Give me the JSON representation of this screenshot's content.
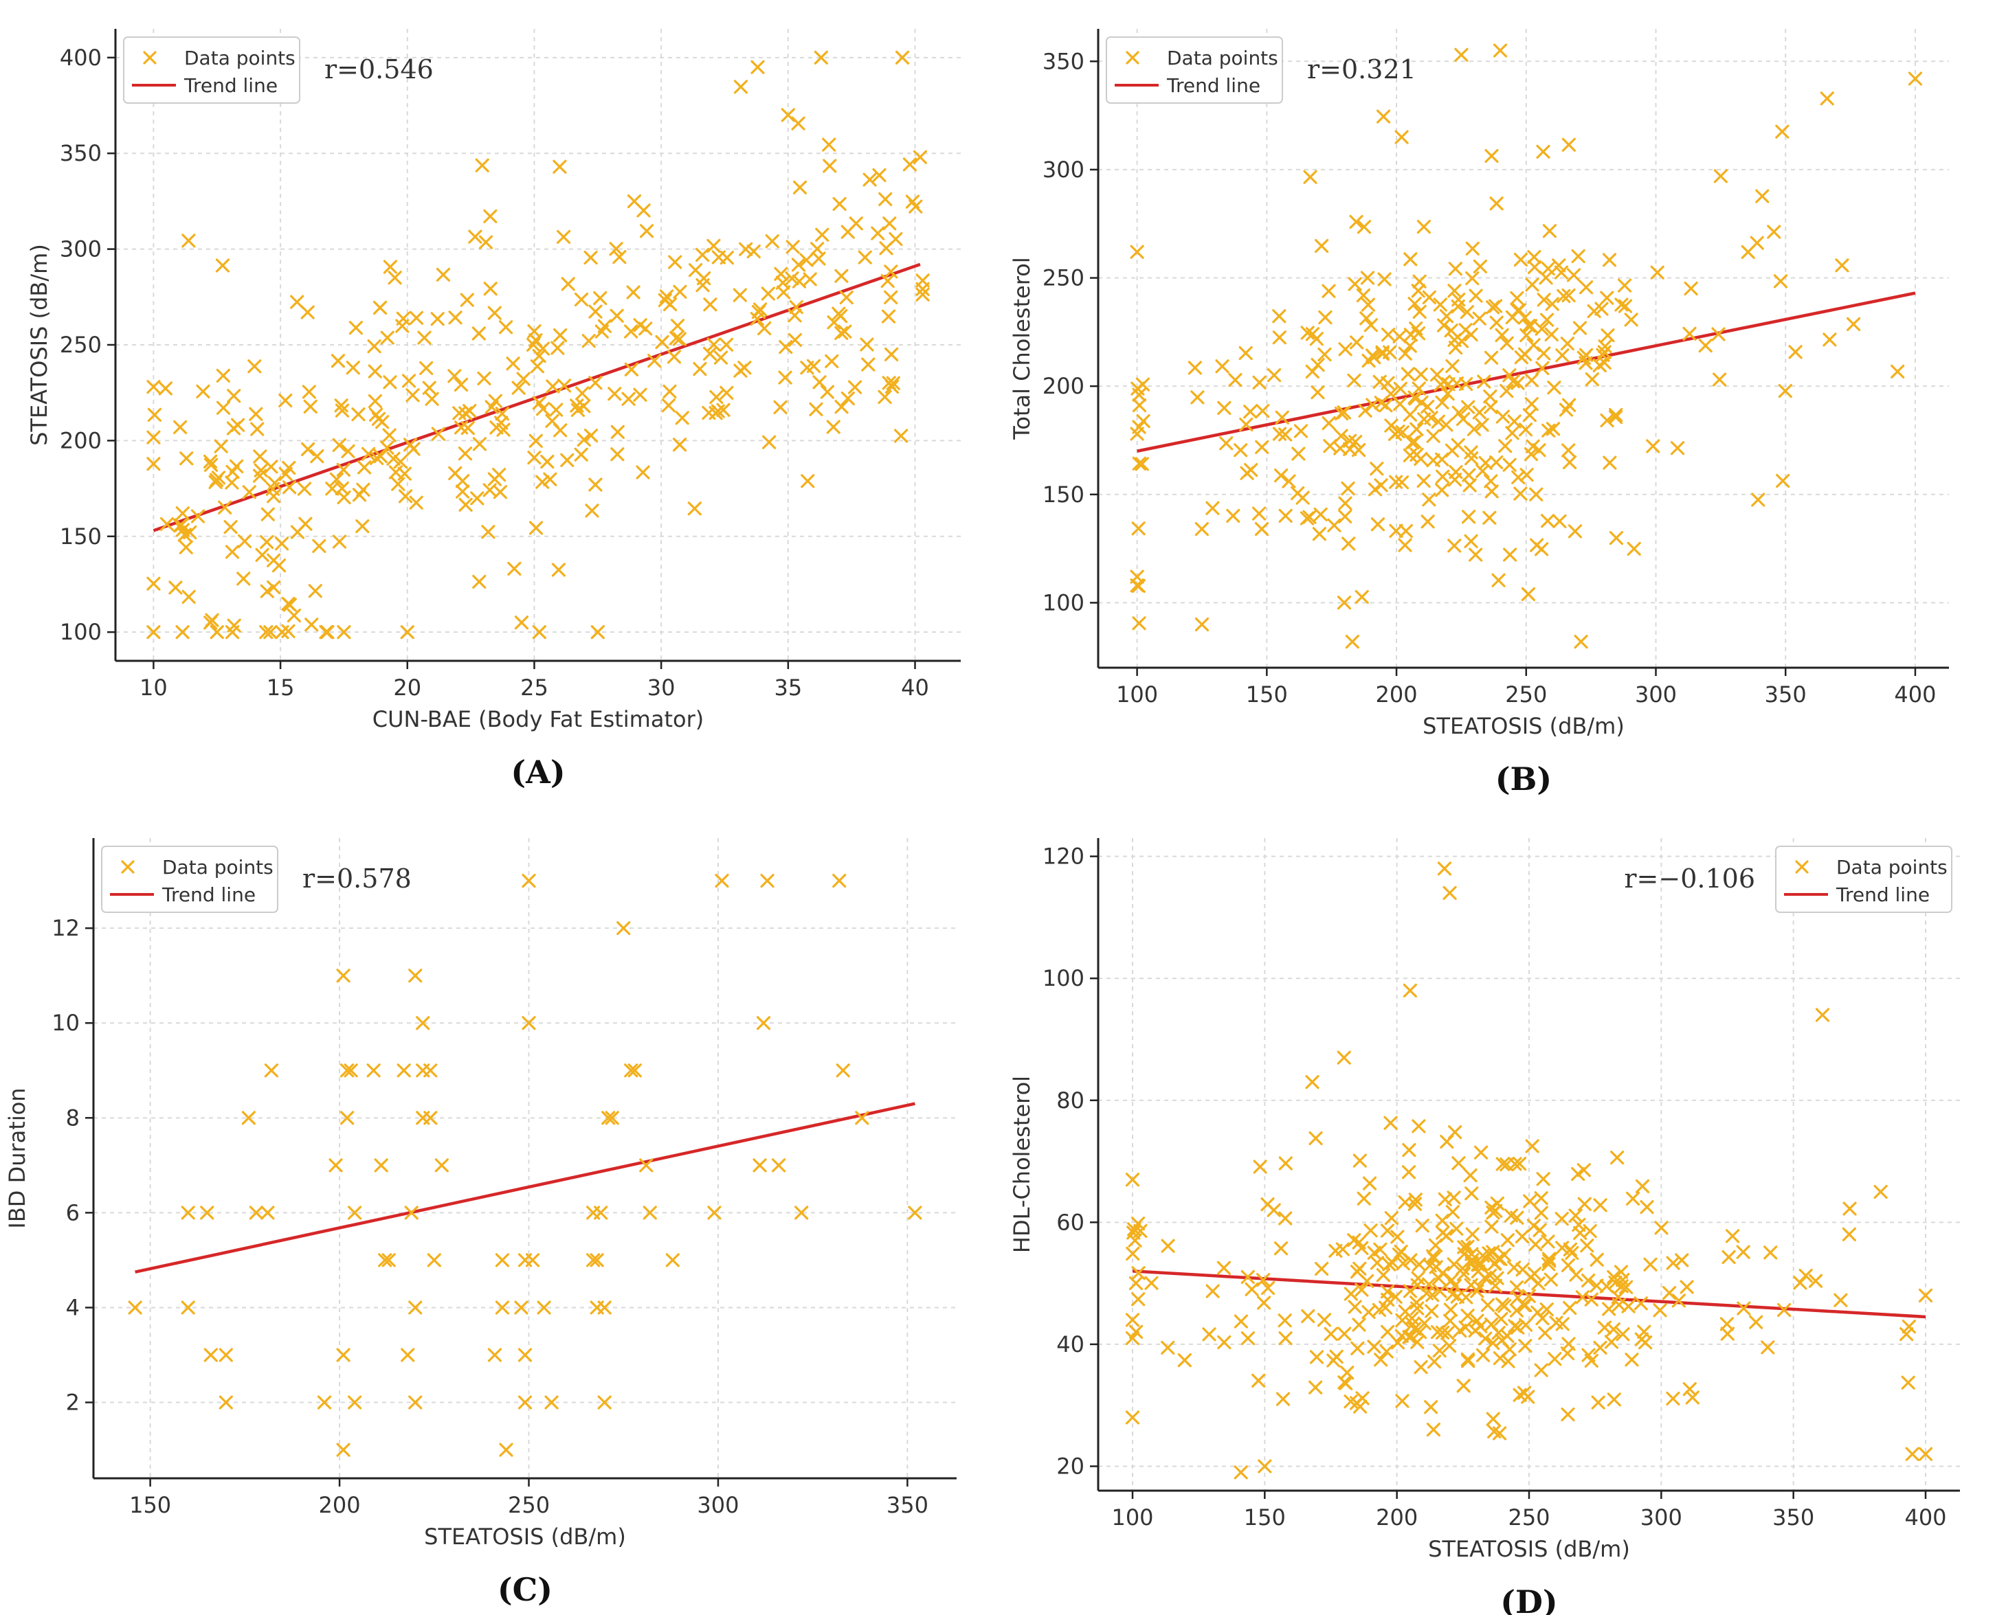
{
  "colors": {
    "points": "#f2b01e",
    "trend": "#d62728"
  },
  "chart_data": [
    {
      "type": "scatter",
      "panel_label": "(A)",
      "xlabel": "CUN-BAE (Body Fat Estimator)",
      "ylabel": "STEATOSIS (dB/m)",
      "xlim": [
        8.5,
        41.8
      ],
      "ylim": [
        85,
        415
      ],
      "xticks": [
        10,
        15,
        20,
        25,
        30,
        35,
        40
      ],
      "yticks": [
        100,
        150,
        200,
        250,
        300,
        350,
        400
      ],
      "annotation": "r=0.546",
      "legend": {
        "position": "upper-left",
        "entries": [
          "Data points",
          "Trend line"
        ]
      },
      "trend_line": {
        "x": [
          10,
          40.2
        ],
        "y": [
          153,
          292
        ]
      },
      "points_seed": 11,
      "sample_points": [
        [
          10,
          100
        ],
        [
          12.5,
          100
        ],
        [
          14.6,
          100
        ],
        [
          16.8,
          100
        ],
        [
          17.5,
          100
        ],
        [
          20,
          100
        ],
        [
          25.2,
          100
        ],
        [
          27.5,
          100
        ],
        [
          24.5,
          105
        ],
        [
          39.5,
          400
        ],
        [
          36.3,
          400
        ],
        [
          33.8,
          395
        ],
        [
          40.2,
          348
        ],
        [
          26,
          343
        ],
        [
          35,
          370
        ]
      ]
    },
    {
      "type": "scatter",
      "panel_label": "(B)",
      "xlabel": "STEATOSIS (dB/m)",
      "ylabel": "Total Cholesterol",
      "xlim": [
        85,
        413
      ],
      "ylim": [
        70,
        365
      ],
      "xticks": [
        100,
        150,
        200,
        250,
        300,
        350,
        400
      ],
      "yticks": [
        100,
        150,
        200,
        250,
        300,
        350
      ],
      "annotation": "r=0.321",
      "legend": {
        "position": "upper-left",
        "entries": [
          "Data points",
          "Trend line"
        ]
      },
      "trend_line": {
        "x": [
          100,
          400
        ],
        "y": [
          170,
          243
        ]
      },
      "points_seed": 22,
      "sample_points": [
        [
          100,
          112
        ],
        [
          100,
          108
        ],
        [
          100,
          262
        ],
        [
          100,
          178
        ],
        [
          125,
          90
        ],
        [
          183,
          82
        ],
        [
          225,
          353
        ],
        [
          240,
          355
        ],
        [
          400,
          342
        ],
        [
          202,
          315
        ],
        [
          325,
          297
        ]
      ]
    },
    {
      "type": "scatter",
      "panel_label": "(C)",
      "xlabel": "STEATOSIS (dB/m)",
      "ylabel": "IBD Duration",
      "xlim": [
        135,
        363
      ],
      "ylim": [
        0.4,
        13.9
      ],
      "xticks": [
        150,
        200,
        250,
        300,
        350
      ],
      "yticks": [
        2,
        4,
        6,
        8,
        10,
        12
      ],
      "annotation": "r=0.578",
      "legend": {
        "position": "upper-left",
        "entries": [
          "Data points",
          "Trend line"
        ]
      },
      "trend_line": {
        "x": [
          146,
          352
        ],
        "y": [
          4.75,
          8.3
        ]
      },
      "points": [
        [
          146,
          4
        ],
        [
          160,
          6
        ],
        [
          160,
          4
        ],
        [
          165,
          6
        ],
        [
          166,
          3
        ],
        [
          170,
          3
        ],
        [
          170,
          2
        ],
        [
          176,
          8
        ],
        [
          178,
          6
        ],
        [
          181,
          6
        ],
        [
          182,
          9
        ],
        [
          196,
          2
        ],
        [
          199,
          7
        ],
        [
          201,
          11
        ],
        [
          201,
          3
        ],
        [
          201,
          1
        ],
        [
          202,
          9
        ],
        [
          202,
          8
        ],
        [
          203,
          9
        ],
        [
          204,
          6
        ],
        [
          204,
          2
        ],
        [
          209,
          9
        ],
        [
          211,
          7
        ],
        [
          212,
          5
        ],
        [
          213,
          5
        ],
        [
          217,
          9
        ],
        [
          218,
          3
        ],
        [
          219,
          6
        ],
        [
          220,
          11
        ],
        [
          220,
          4
        ],
        [
          220,
          2
        ],
        [
          222,
          10
        ],
        [
          222,
          9
        ],
        [
          222,
          8
        ],
        [
          224,
          9
        ],
        [
          224,
          8
        ],
        [
          225,
          5
        ],
        [
          227,
          7
        ],
        [
          241,
          3
        ],
        [
          243,
          4
        ],
        [
          243,
          5
        ],
        [
          244,
          1
        ],
        [
          248,
          4
        ],
        [
          249,
          5
        ],
        [
          249,
          3
        ],
        [
          249,
          2
        ],
        [
          250,
          13
        ],
        [
          250,
          10
        ],
        [
          251,
          5
        ],
        [
          254,
          4
        ],
        [
          256,
          2
        ],
        [
          267,
          6
        ],
        [
          267,
          5
        ],
        [
          268,
          4
        ],
        [
          268,
          5
        ],
        [
          269,
          6
        ],
        [
          270,
          4
        ],
        [
          270,
          2
        ],
        [
          271,
          8
        ],
        [
          272,
          8
        ],
        [
          275,
          12
        ],
        [
          277,
          9
        ],
        [
          278,
          9
        ],
        [
          281,
          7
        ],
        [
          282,
          6
        ],
        [
          288,
          5
        ],
        [
          299,
          6
        ],
        [
          301,
          13
        ],
        [
          311,
          7
        ],
        [
          312,
          10
        ],
        [
          313,
          13
        ],
        [
          316,
          7
        ],
        [
          322,
          6
        ],
        [
          332,
          13
        ],
        [
          333,
          9
        ],
        [
          338,
          8
        ],
        [
          352,
          6
        ]
      ]
    },
    {
      "type": "scatter",
      "panel_label": "(D)",
      "xlabel": "STEATOSIS (dB/m)",
      "ylabel": "HDL-Cholesterol",
      "xlim": [
        87,
        413
      ],
      "ylim": [
        16,
        123
      ],
      "xticks": [
        100,
        150,
        200,
        250,
        300,
        350,
        400
      ],
      "yticks": [
        20,
        40,
        60,
        80,
        100,
        120
      ],
      "annotation": "r=−0.106",
      "legend": {
        "position": "upper-right",
        "entries": [
          "Data points",
          "Trend line"
        ]
      },
      "trend_line": {
        "x": [
          100,
          400
        ],
        "y": [
          52,
          44.5
        ]
      },
      "points_seed": 44,
      "sample_points": [
        [
          100,
          67
        ],
        [
          100,
          28
        ],
        [
          100,
          41
        ],
        [
          100,
          44
        ],
        [
          141,
          19
        ],
        [
          150,
          20
        ],
        [
          218,
          118
        ],
        [
          220,
          114
        ],
        [
          205,
          98
        ],
        [
          361,
          94
        ],
        [
          180,
          87
        ],
        [
          168,
          83
        ],
        [
          395,
          22
        ],
        [
          400,
          22
        ],
        [
          400,
          48
        ],
        [
          383,
          65
        ]
      ]
    }
  ]
}
